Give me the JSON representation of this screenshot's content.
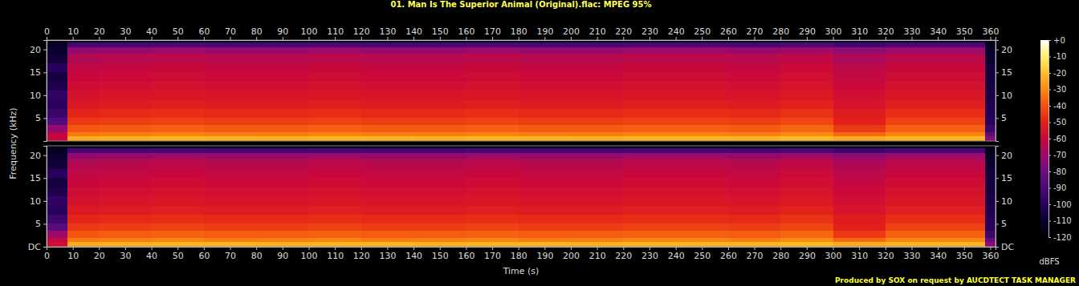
{
  "chart_data": {
    "type": "heatmap",
    "title": "01. Man Is The Superior Animal (Original).flac: MPEG 95%",
    "x_label": "Time (s)",
    "y_label": "Frequency (kHz)",
    "color_label": "dBFS",
    "footer": "Produced by SOX on request by AUCDTECT TASK MANAGER",
    "xlim": [
      0,
      362
    ],
    "xticks": [
      0,
      10,
      20,
      30,
      40,
      50,
      60,
      70,
      80,
      90,
      100,
      110,
      120,
      130,
      140,
      150,
      160,
      170,
      180,
      190,
      200,
      210,
      220,
      230,
      240,
      250,
      260,
      270,
      280,
      290,
      300,
      310,
      320,
      330,
      340,
      350,
      360
    ],
    "ylim": [
      0,
      22.05
    ],
    "time_edges": [
      0,
      8,
      20,
      40,
      60,
      80,
      100,
      120,
      140,
      160,
      180,
      200,
      220,
      240,
      260,
      280,
      300,
      320,
      340,
      358,
      362
    ],
    "freq_edges": [
      0,
      1,
      2,
      3.5,
      5,
      7,
      9,
      11,
      13,
      15,
      17,
      19,
      20.5,
      21.5,
      22.05
    ],
    "color_range": [
      -120,
      0
    ],
    "color_ticks": [
      {
        "value": 0,
        "label": "+0"
      },
      -10,
      -20,
      -30,
      -40,
      -50,
      -60,
      -70,
      -80,
      -90,
      -100,
      -110,
      -120
    ],
    "panels": [
      {
        "yticks": [
          5,
          10,
          15,
          20
        ],
        "cells": [
          [
            -60,
            -24,
            -23,
            -22,
            -22,
            -23,
            -22,
            -22,
            -23,
            -22,
            -22,
            -23,
            -22,
            -22,
            -22,
            -21,
            -24,
            -22,
            -22,
            -75
          ],
          [
            -62,
            -33,
            -32,
            -31,
            -32,
            -32,
            -31,
            -32,
            -32,
            -31,
            -32,
            -32,
            -31,
            -31,
            -32,
            -30,
            -36,
            -31,
            -31,
            -85
          ],
          [
            -72,
            -39,
            -38,
            -37,
            -38,
            -38,
            -37,
            -38,
            -38,
            -37,
            -38,
            -38,
            -37,
            -37,
            -38,
            -36,
            -45,
            -37,
            -37,
            -95
          ],
          [
            -88,
            -45,
            -44,
            -43,
            -44,
            -44,
            -43,
            -44,
            -44,
            -43,
            -44,
            -44,
            -43,
            -43,
            -44,
            -42,
            -50,
            -43,
            -43,
            -100
          ],
          [
            -95,
            -49,
            -48,
            -47,
            -48,
            -48,
            -47,
            -48,
            -48,
            -47,
            -48,
            -48,
            -47,
            -47,
            -48,
            -46,
            -52,
            -47,
            -47,
            -102
          ],
          [
            -100,
            -53,
            -52,
            -51,
            -52,
            -52,
            -51,
            -52,
            -52,
            -51,
            -52,
            -52,
            -51,
            -51,
            -52,
            -50,
            -55,
            -51,
            -51,
            -104
          ],
          [
            -98,
            -56,
            -55,
            -54,
            -55,
            -55,
            -54,
            -55,
            -55,
            -54,
            -55,
            -55,
            -54,
            -54,
            -55,
            -53,
            -57,
            -54,
            -54,
            -105
          ],
          [
            -104,
            -58,
            -57,
            -56,
            -57,
            -57,
            -56,
            -57,
            -57,
            -56,
            -57,
            -57,
            -56,
            -56,
            -57,
            -55,
            -59,
            -56,
            -56,
            -106
          ],
          [
            -106,
            -60,
            -59,
            -58,
            -59,
            -59,
            -58,
            -59,
            -59,
            -58,
            -59,
            -59,
            -58,
            -58,
            -59,
            -57,
            -61,
            -58,
            -58,
            -107
          ],
          [
            -100,
            -62,
            -61,
            -60,
            -61,
            -61,
            -60,
            -61,
            -61,
            -60,
            -61,
            -61,
            -60,
            -60,
            -61,
            -59,
            -63,
            -60,
            -60,
            -108
          ],
          [
            -108,
            -65,
            -64,
            -63,
            -64,
            -64,
            -63,
            -64,
            -64,
            -63,
            -64,
            -64,
            -63,
            -63,
            -64,
            -62,
            -66,
            -63,
            -63,
            -110
          ],
          [
            -110,
            -72,
            -71,
            -70,
            -71,
            -71,
            -70,
            -71,
            -71,
            -70,
            -71,
            -71,
            -70,
            -70,
            -71,
            -69,
            -73,
            -70,
            -70,
            -112
          ],
          [
            -112,
            -92,
            -92,
            -91,
            -92,
            -92,
            -91,
            -92,
            -92,
            -91,
            -92,
            -92,
            -91,
            -91,
            -92,
            -90,
            -94,
            -91,
            -91,
            -114
          ],
          [
            -115,
            -115,
            -115,
            -115,
            -115,
            -115,
            -115,
            -115,
            -115,
            -115,
            -115,
            -115,
            -115,
            -115,
            -115,
            -115,
            -115,
            -115,
            -115,
            -116
          ]
        ]
      },
      {
        "yticks": [
          {
            "value": 0,
            "label": "DC"
          },
          5,
          10,
          15,
          20
        ],
        "cells": [
          [
            -58,
            -24,
            -23,
            -22,
            -22,
            -23,
            -22,
            -22,
            -23,
            -22,
            -22,
            -23,
            -22,
            -22,
            -22,
            -21,
            -24,
            -22,
            -22,
            -74
          ],
          [
            -60,
            -33,
            -32,
            -31,
            -32,
            -32,
            -31,
            -32,
            -32,
            -31,
            -32,
            -32,
            -31,
            -31,
            -32,
            -30,
            -36,
            -31,
            -31,
            -84
          ],
          [
            -70,
            -39,
            -38,
            -37,
            -38,
            -38,
            -37,
            -38,
            -38,
            -37,
            -38,
            -38,
            -37,
            -37,
            -38,
            -36,
            -45,
            -37,
            -37,
            -94
          ],
          [
            -86,
            -45,
            -44,
            -43,
            -44,
            -44,
            -43,
            -44,
            -44,
            -43,
            -44,
            -44,
            -43,
            -43,
            -44,
            -42,
            -50,
            -43,
            -43,
            -100
          ],
          [
            -94,
            -49,
            -48,
            -47,
            -48,
            -48,
            -47,
            -48,
            -48,
            -47,
            -48,
            -48,
            -47,
            -47,
            -48,
            -46,
            -52,
            -47,
            -47,
            -102
          ],
          [
            -100,
            -53,
            -52,
            -51,
            -52,
            -52,
            -51,
            -52,
            -52,
            -51,
            -52,
            -52,
            -51,
            -51,
            -52,
            -50,
            -55,
            -51,
            -51,
            -104
          ],
          [
            -98,
            -56,
            -55,
            -54,
            -55,
            -55,
            -54,
            -55,
            -55,
            -54,
            -55,
            -55,
            -54,
            -54,
            -55,
            -53,
            -57,
            -54,
            -54,
            -105
          ],
          [
            -104,
            -58,
            -57,
            -56,
            -57,
            -57,
            -56,
            -57,
            -57,
            -56,
            -57,
            -57,
            -56,
            -56,
            -57,
            -55,
            -59,
            -56,
            -56,
            -106
          ],
          [
            -106,
            -60,
            -59,
            -58,
            -59,
            -59,
            -58,
            -59,
            -59,
            -58,
            -59,
            -59,
            -58,
            -58,
            -59,
            -57,
            -61,
            -58,
            -58,
            -107
          ],
          [
            -100,
            -62,
            -61,
            -60,
            -61,
            -61,
            -60,
            -61,
            -61,
            -60,
            -61,
            -61,
            -60,
            -60,
            -61,
            -59,
            -63,
            -60,
            -60,
            -108
          ],
          [
            -108,
            -65,
            -64,
            -63,
            -64,
            -64,
            -63,
            -64,
            -64,
            -63,
            -64,
            -64,
            -63,
            -63,
            -64,
            -62,
            -66,
            -63,
            -63,
            -110
          ],
          [
            -110,
            -72,
            -71,
            -70,
            -71,
            -71,
            -70,
            -71,
            -71,
            -70,
            -71,
            -71,
            -70,
            -70,
            -71,
            -69,
            -73,
            -70,
            -70,
            -112
          ],
          [
            -112,
            -92,
            -92,
            -91,
            -92,
            -92,
            -91,
            -92,
            -92,
            -91,
            -92,
            -92,
            -91,
            -91,
            -92,
            -90,
            -94,
            -91,
            -91,
            -114
          ],
          [
            -115,
            -115,
            -115,
            -115,
            -115,
            -115,
            -115,
            -115,
            -115,
            -115,
            -115,
            -115,
            -115,
            -115,
            -115,
            -115,
            -115,
            -115,
            -115,
            -116
          ]
        ]
      }
    ]
  }
}
